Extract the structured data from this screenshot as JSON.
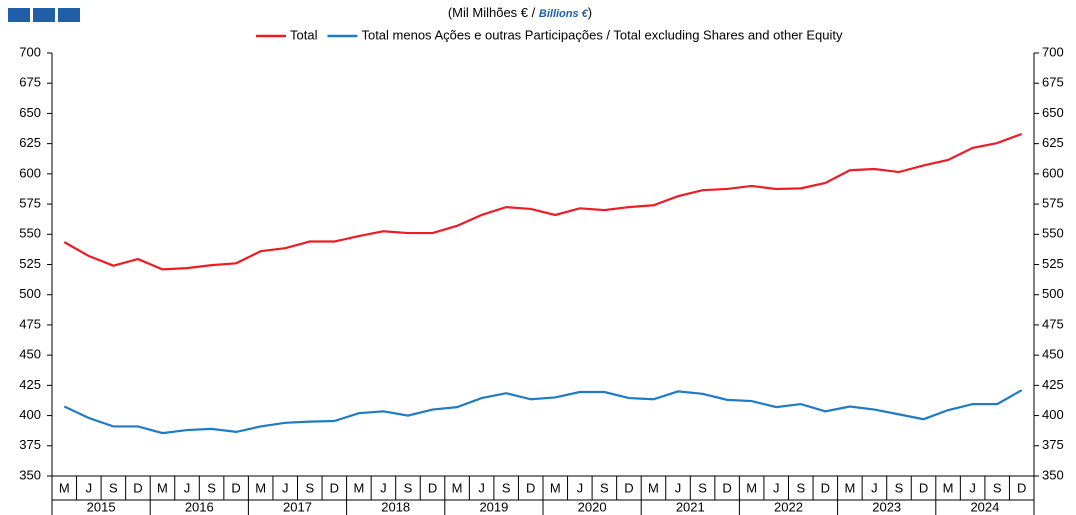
{
  "chart_data": {
    "type": "line",
    "title": "(Mil Milhões € /",
    "title_en": "Billions €",
    "title_close": ")",
    "categories": [
      "M",
      "J",
      "S",
      "D",
      "M",
      "J",
      "S",
      "D",
      "M",
      "J",
      "S",
      "D",
      "M",
      "J",
      "S",
      "D",
      "M",
      "J",
      "S",
      "D",
      "M",
      "J",
      "S",
      "D",
      "M",
      "J",
      "S",
      "D",
      "M",
      "J",
      "S",
      "D",
      "M",
      "J",
      "S",
      "D",
      "M",
      "J",
      "S",
      "D"
    ],
    "years": [
      "2015",
      "2016",
      "2017",
      "2018",
      "2019",
      "2020",
      "2021",
      "2022",
      "2023",
      "2024"
    ],
    "series": [
      {
        "name": "Total",
        "color": "#ee1c25",
        "values": [
          543.5,
          532,
          524,
          529.5,
          521,
          522,
          524.5,
          526,
          536,
          538.5,
          544,
          544,
          548.5,
          552.5,
          551,
          551,
          557,
          566,
          572.5,
          571,
          566,
          571.5,
          570,
          572.5,
          574,
          581.5,
          586.5,
          587.5,
          590,
          587.5,
          588,
          592.5,
          603,
          604,
          601.5,
          607,
          611.5,
          621.5,
          625.5,
          633
        ]
      },
      {
        "name": "Total menos Ações e outras Participações / Total excluding Shares and other Equity",
        "color": "#1f7bc4",
        "values": [
          407.5,
          398,
          391,
          391,
          385.5,
          388,
          389,
          386.5,
          391,
          394,
          395,
          395.5,
          402,
          403.5,
          400,
          405,
          407,
          414.5,
          418.5,
          413.5,
          415,
          419.5,
          419.5,
          414.5,
          413.5,
          420,
          418,
          413,
          412,
          407,
          409.5,
          403.5,
          407.5,
          405,
          401,
          397,
          404.5,
          409.5,
          409.5,
          421
        ]
      }
    ],
    "ylim": [
      350,
      700
    ],
    "yticks": [
      350,
      375,
      400,
      425,
      450,
      475,
      500,
      525,
      550,
      575,
      600,
      625,
      650,
      675,
      700
    ],
    "y2lim": [
      350,
      700
    ],
    "y2ticks": [
      350,
      375,
      400,
      425,
      450,
      475,
      500,
      525,
      550,
      575,
      600,
      625,
      650,
      675,
      700
    ]
  }
}
